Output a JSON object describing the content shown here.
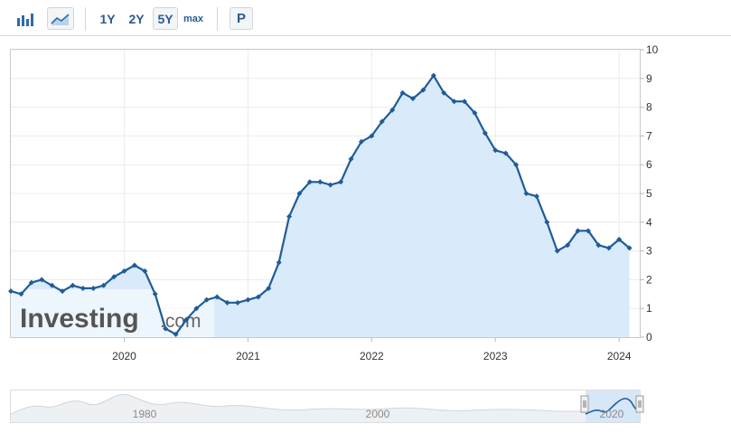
{
  "toolbar": {
    "bar_chart_icon": "bar-chart-icon",
    "area_chart_icon": "area-chart-icon",
    "ranges": [
      "1Y",
      "2Y",
      "5Y",
      "max"
    ],
    "active_range": "5Y",
    "p_label": "P"
  },
  "chart_data": {
    "type": "area",
    "x_tick_labels": [
      "2020",
      "2021",
      "2022",
      "2023",
      "2024"
    ],
    "y_tick_labels": [
      "0",
      "1",
      "2",
      "3",
      "4",
      "5",
      "6",
      "7",
      "8",
      "9",
      "10"
    ],
    "ylim": [
      0,
      10
    ],
    "xlim": [
      "2019-02",
      "2024-03"
    ],
    "grid": true,
    "y_axis_position": "right",
    "series": [
      {
        "x": [
          "2019-02",
          "2019-03",
          "2019-04",
          "2019-05",
          "2019-06",
          "2019-07",
          "2019-08",
          "2019-09",
          "2019-10",
          "2019-11",
          "2019-12",
          "2020-01",
          "2020-02",
          "2020-03",
          "2020-04",
          "2020-05",
          "2020-06",
          "2020-07",
          "2020-08",
          "2020-09",
          "2020-10",
          "2020-11",
          "2020-12",
          "2021-01",
          "2021-02",
          "2021-03",
          "2021-04",
          "2021-05",
          "2021-06",
          "2021-07",
          "2021-08",
          "2021-09",
          "2021-10",
          "2021-11",
          "2021-12",
          "2022-01",
          "2022-02",
          "2022-03",
          "2022-04",
          "2022-05",
          "2022-06",
          "2022-07",
          "2022-08",
          "2022-09",
          "2022-10",
          "2022-11",
          "2022-12",
          "2023-01",
          "2023-02",
          "2023-03",
          "2023-04",
          "2023-05",
          "2023-06",
          "2023-07",
          "2023-08",
          "2023-09",
          "2023-10",
          "2023-11",
          "2023-12",
          "2024-01",
          "2024-02"
        ],
        "values": [
          1.6,
          1.5,
          1.9,
          2.0,
          1.8,
          1.6,
          1.8,
          1.7,
          1.7,
          1.8,
          2.1,
          2.3,
          2.5,
          2.3,
          1.5,
          0.3,
          0.1,
          0.6,
          1.0,
          1.3,
          1.4,
          1.2,
          1.2,
          1.3,
          1.4,
          1.7,
          2.6,
          4.2,
          5.0,
          5.4,
          5.4,
          5.3,
          5.4,
          6.2,
          6.8,
          7.0,
          7.5,
          7.9,
          8.5,
          8.3,
          8.6,
          9.1,
          8.5,
          8.2,
          8.2,
          7.8,
          7.1,
          6.5,
          6.4,
          6.0,
          5.0,
          4.9,
          4.0,
          3.0,
          3.2,
          3.7,
          3.7,
          3.2,
          3.1,
          3.4,
          3.1
        ]
      }
    ],
    "color": "#1f5c99",
    "fill_color": "#d9eafb"
  },
  "watermark": {
    "brand": "Investing",
    "suffix": ".com"
  },
  "navigator": {
    "tick_labels": [
      "1980",
      "2000",
      "2020"
    ]
  }
}
